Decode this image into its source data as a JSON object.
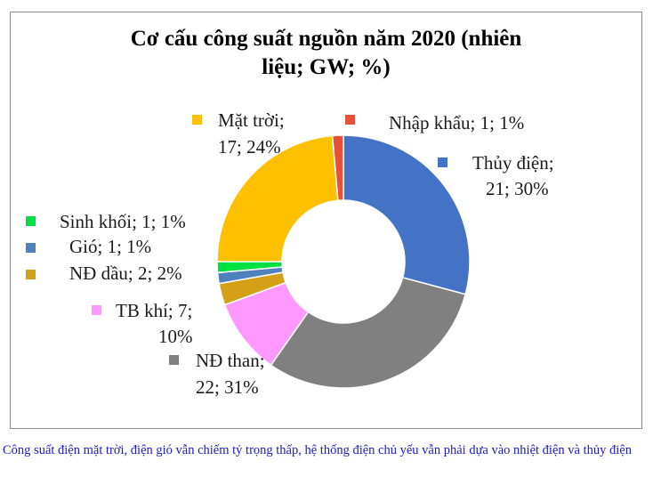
{
  "chart_data": {
    "type": "pie",
    "donut": true,
    "title_lines": [
      "Cơ cấu công suất nguồn năm 2020 (nhiên",
      "liệu; GW; %)"
    ],
    "slices": [
      {
        "name": "Thủy điện",
        "value": 21,
        "percent": 30,
        "color": "#4472c4",
        "label_lines": [
          "Thủy điện;",
          "21; 30%"
        ]
      },
      {
        "name": "NĐ than",
        "value": 22,
        "percent": 31,
        "color": "#808080",
        "label_lines": [
          "NĐ than;",
          "22; 31%"
        ]
      },
      {
        "name": "TB khí",
        "value": 7,
        "percent": 10,
        "color": "#ff99ff",
        "label_lines": [
          "TB khí; 7;",
          "10%"
        ]
      },
      {
        "name": "NĐ dầu",
        "value": 2,
        "percent": 2,
        "color": "#d4a017",
        "label_lines": [
          "NĐ dầu; 2; 2%"
        ]
      },
      {
        "name": "Gió",
        "value": 1,
        "percent": 1,
        "color": "#4f81bd",
        "label_lines": [
          "Gió; 1; 1%"
        ]
      },
      {
        "name": "Sinh khối",
        "value": 1,
        "percent": 1,
        "color": "#00e040",
        "label_lines": [
          "Sinh khối; 1; 1%"
        ]
      },
      {
        "name": "Mặt trời",
        "value": 17,
        "percent": 24,
        "color": "#ffc000",
        "label_lines": [
          "Mặt trời;",
          "17; 24%"
        ]
      },
      {
        "name": "Nhập khẩu",
        "value": 1,
        "percent": 1,
        "color": "#e8503a",
        "label_lines": [
          "Nhập khẩu; 1; 1%"
        ]
      }
    ]
  },
  "caption": "Công suất điện mặt trời, điện gió vẫn chiếm tỷ trọng thấp, hệ thống điện chủ yếu vẫn phải dựa vào nhiệt điện và thủy điện"
}
